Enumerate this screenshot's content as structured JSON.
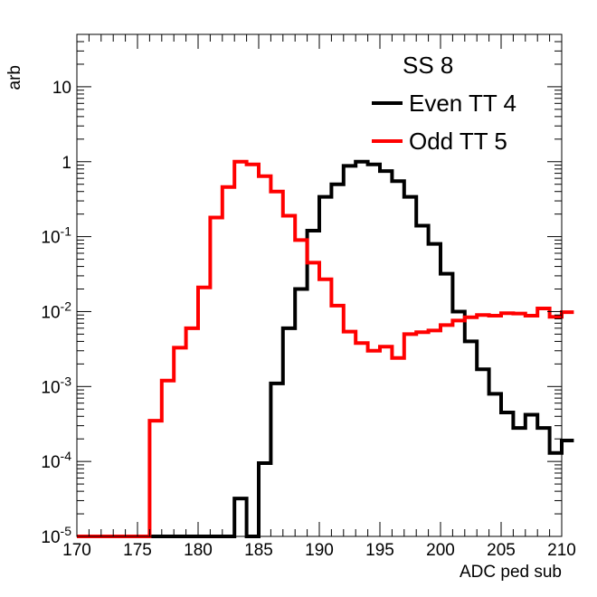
{
  "chart_data": {
    "type": "line",
    "style": "step-histogram",
    "title": "SS 8",
    "xlabel": "ADC ped sub",
    "ylabel": "arb",
    "xlim": [
      170,
      210
    ],
    "ylim": [
      1e-05,
      50
    ],
    "yscale": "log",
    "grid": false,
    "legend_position": "top-right",
    "bin_width": 1,
    "x_ticks": [
      170,
      175,
      180,
      185,
      190,
      195,
      200,
      205,
      210
    ],
    "x_tick_labels": [
      "170",
      "175",
      "180",
      "185",
      "190",
      "195",
      "200",
      "205",
      "210"
    ],
    "y_major_ticks": [
      1e-05,
      0.0001,
      0.001,
      0.01,
      0.1,
      1,
      10
    ],
    "y_tick_labels": [
      {
        "base": "10",
        "exp": "-5"
      },
      {
        "base": "10",
        "exp": "-4"
      },
      {
        "base": "10",
        "exp": "-3"
      },
      {
        "base": "10",
        "exp": "-2"
      },
      {
        "base": "10",
        "exp": "-1"
      },
      {
        "base": "1",
        "exp": ""
      },
      {
        "base": "10",
        "exp": ""
      }
    ],
    "series": [
      {
        "name": "Even TT 4",
        "color": "#000000",
        "bin_edges_start": 170,
        "values": [
          1e-05,
          1e-05,
          1e-05,
          1e-05,
          1e-05,
          1e-05,
          1e-05,
          1e-05,
          1e-05,
          1e-05,
          1e-05,
          1e-05,
          1e-05,
          3.2e-05,
          1e-05,
          9.5e-05,
          0.0011,
          0.006,
          0.02,
          0.12,
          0.34,
          0.5,
          0.88,
          1.0,
          0.92,
          0.75,
          0.55,
          0.34,
          0.14,
          0.08,
          0.032,
          0.01,
          0.004,
          0.0017,
          0.0008,
          0.00045,
          0.00028,
          0.00042,
          0.00028,
          0.00013,
          0.00019
        ]
      },
      {
        "name": "Odd TT 5",
        "color": "#ff0000",
        "bin_edges_start": 170,
        "values": [
          1e-05,
          1e-05,
          1e-05,
          1e-05,
          1e-05,
          1e-05,
          0.00035,
          0.0012,
          0.0033,
          0.006,
          0.021,
          0.18,
          0.46,
          1.0,
          0.92,
          0.64,
          0.4,
          0.19,
          0.09,
          0.045,
          0.027,
          0.012,
          0.0054,
          0.0038,
          0.003,
          0.0034,
          0.0024,
          0.005,
          0.0053,
          0.0056,
          0.0066,
          0.0076,
          0.0084,
          0.009,
          0.0088,
          0.0095,
          0.0094,
          0.0088,
          0.011,
          0.0085,
          0.0098
        ]
      }
    ]
  }
}
